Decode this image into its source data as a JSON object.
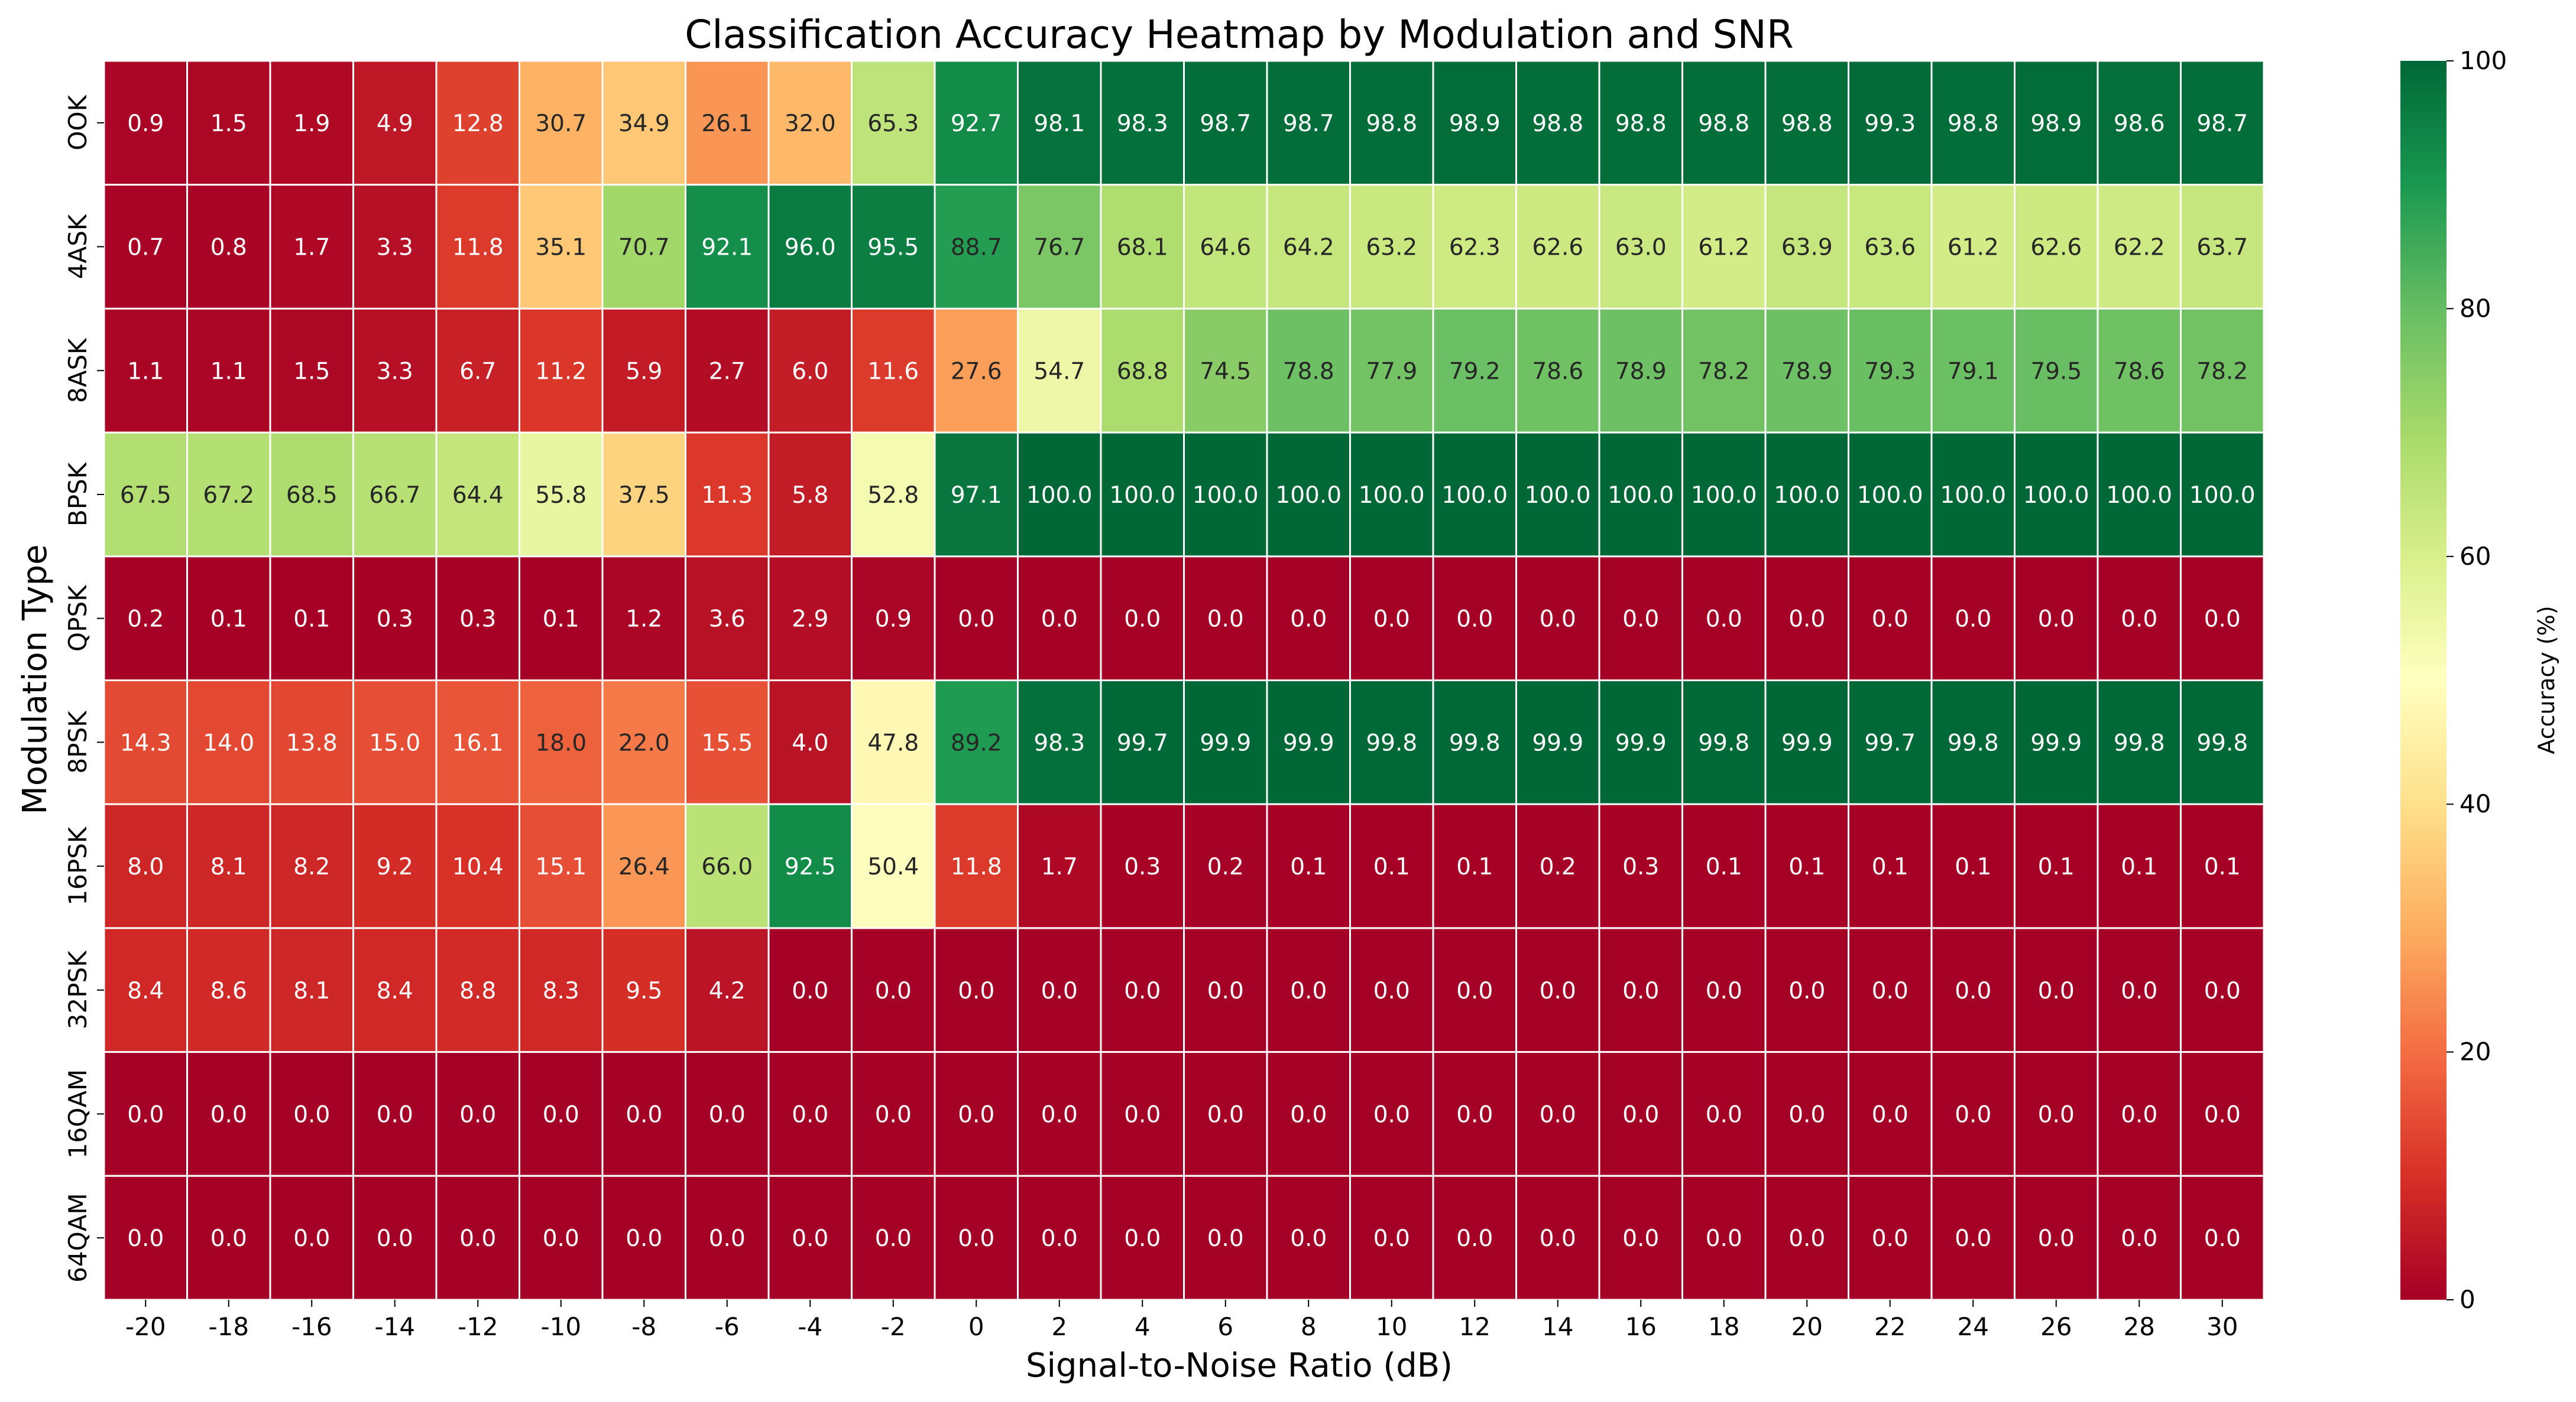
{
  "chart_data": {
    "type": "heatmap",
    "title": "Classification Accuracy Heatmap by Modulation and SNR",
    "xlabel": "Signal-to-Noise Ratio (dB)",
    "ylabel": "Modulation Type",
    "colorbar_label": "Accuracy (%)",
    "colorbar_ticks": [
      "0",
      "20",
      "40",
      "60",
      "80",
      "100"
    ],
    "vmin": 0,
    "vmax": 100,
    "colormap": "RdYlGn",
    "x": [
      "-20",
      "-18",
      "-16",
      "-14",
      "-12",
      "-10",
      "-8",
      "-6",
      "-4",
      "-2",
      "0",
      "2",
      "4",
      "6",
      "8",
      "10",
      "12",
      "14",
      "16",
      "18",
      "20",
      "22",
      "24",
      "26",
      "28",
      "30"
    ],
    "y": [
      "OOK",
      "4ASK",
      "8ASK",
      "BPSK",
      "QPSK",
      "8PSK",
      "16PSK",
      "32PSK",
      "16QAM",
      "64QAM"
    ],
    "values": [
      [
        0.9,
        1.5,
        1.9,
        4.9,
        12.8,
        30.7,
        34.9,
        26.1,
        32.0,
        65.3,
        92.7,
        98.1,
        98.3,
        98.7,
        98.7,
        98.8,
        98.9,
        98.8,
        98.8,
        98.8,
        98.8,
        99.3,
        98.8,
        98.9,
        98.6,
        98.7
      ],
      [
        0.7,
        0.8,
        1.7,
        3.3,
        11.8,
        35.1,
        70.7,
        92.1,
        96.0,
        95.5,
        88.7,
        76.7,
        68.1,
        64.6,
        64.2,
        63.2,
        62.3,
        62.6,
        63.0,
        61.2,
        63.9,
        63.6,
        61.2,
        62.6,
        62.2,
        63.7
      ],
      [
        1.1,
        1.1,
        1.5,
        3.3,
        6.7,
        11.2,
        5.9,
        2.7,
        6.0,
        11.6,
        27.6,
        54.7,
        68.8,
        74.5,
        78.8,
        77.9,
        79.2,
        78.6,
        78.9,
        78.2,
        78.9,
        79.3,
        79.1,
        79.5,
        78.6,
        78.2
      ],
      [
        67.5,
        67.2,
        68.5,
        66.7,
        64.4,
        55.8,
        37.5,
        11.3,
        5.8,
        52.8,
        97.1,
        100.0,
        100.0,
        100.0,
        100.0,
        100.0,
        100.0,
        100.0,
        100.0,
        100.0,
        100.0,
        100.0,
        100.0,
        100.0,
        100.0,
        100.0
      ],
      [
        0.2,
        0.1,
        0.1,
        0.3,
        0.3,
        0.1,
        1.2,
        3.6,
        2.9,
        0.9,
        0.0,
        0.0,
        0.0,
        0.0,
        0.0,
        0.0,
        0.0,
        0.0,
        0.0,
        0.0,
        0.0,
        0.0,
        0.0,
        0.0,
        0.0,
        0.0
      ],
      [
        14.3,
        14.0,
        13.8,
        15.0,
        16.1,
        18.0,
        22.0,
        15.5,
        4.0,
        47.8,
        89.2,
        98.3,
        99.7,
        99.9,
        99.9,
        99.8,
        99.8,
        99.9,
        99.9,
        99.8,
        99.9,
        99.7,
        99.8,
        99.9,
        99.8,
        99.8
      ],
      [
        8.0,
        8.1,
        8.2,
        9.2,
        10.4,
        15.1,
        26.4,
        66.0,
        92.5,
        50.4,
        11.8,
        1.7,
        0.3,
        0.2,
        0.1,
        0.1,
        0.1,
        0.2,
        0.3,
        0.1,
        0.1,
        0.1,
        0.1,
        0.1,
        0.1,
        0.1
      ],
      [
        8.4,
        8.6,
        8.1,
        8.4,
        8.8,
        8.3,
        9.5,
        4.2,
        0.0,
        0.0,
        0.0,
        0.0,
        0.0,
        0.0,
        0.0,
        0.0,
        0.0,
        0.0,
        0.0,
        0.0,
        0.0,
        0.0,
        0.0,
        0.0,
        0.0,
        0.0
      ],
      [
        0.0,
        0.0,
        0.0,
        0.0,
        0.0,
        0.0,
        0.0,
        0.0,
        0.0,
        0.0,
        0.0,
        0.0,
        0.0,
        0.0,
        0.0,
        0.0,
        0.0,
        0.0,
        0.0,
        0.0,
        0.0,
        0.0,
        0.0,
        0.0,
        0.0,
        0.0
      ],
      [
        0.0,
        0.0,
        0.0,
        0.0,
        0.0,
        0.0,
        0.0,
        0.0,
        0.0,
        0.0,
        0.0,
        0.0,
        0.0,
        0.0,
        0.0,
        0.0,
        0.0,
        0.0,
        0.0,
        0.0,
        0.0,
        0.0,
        0.0,
        0.0,
        0.0,
        0.0
      ]
    ]
  }
}
